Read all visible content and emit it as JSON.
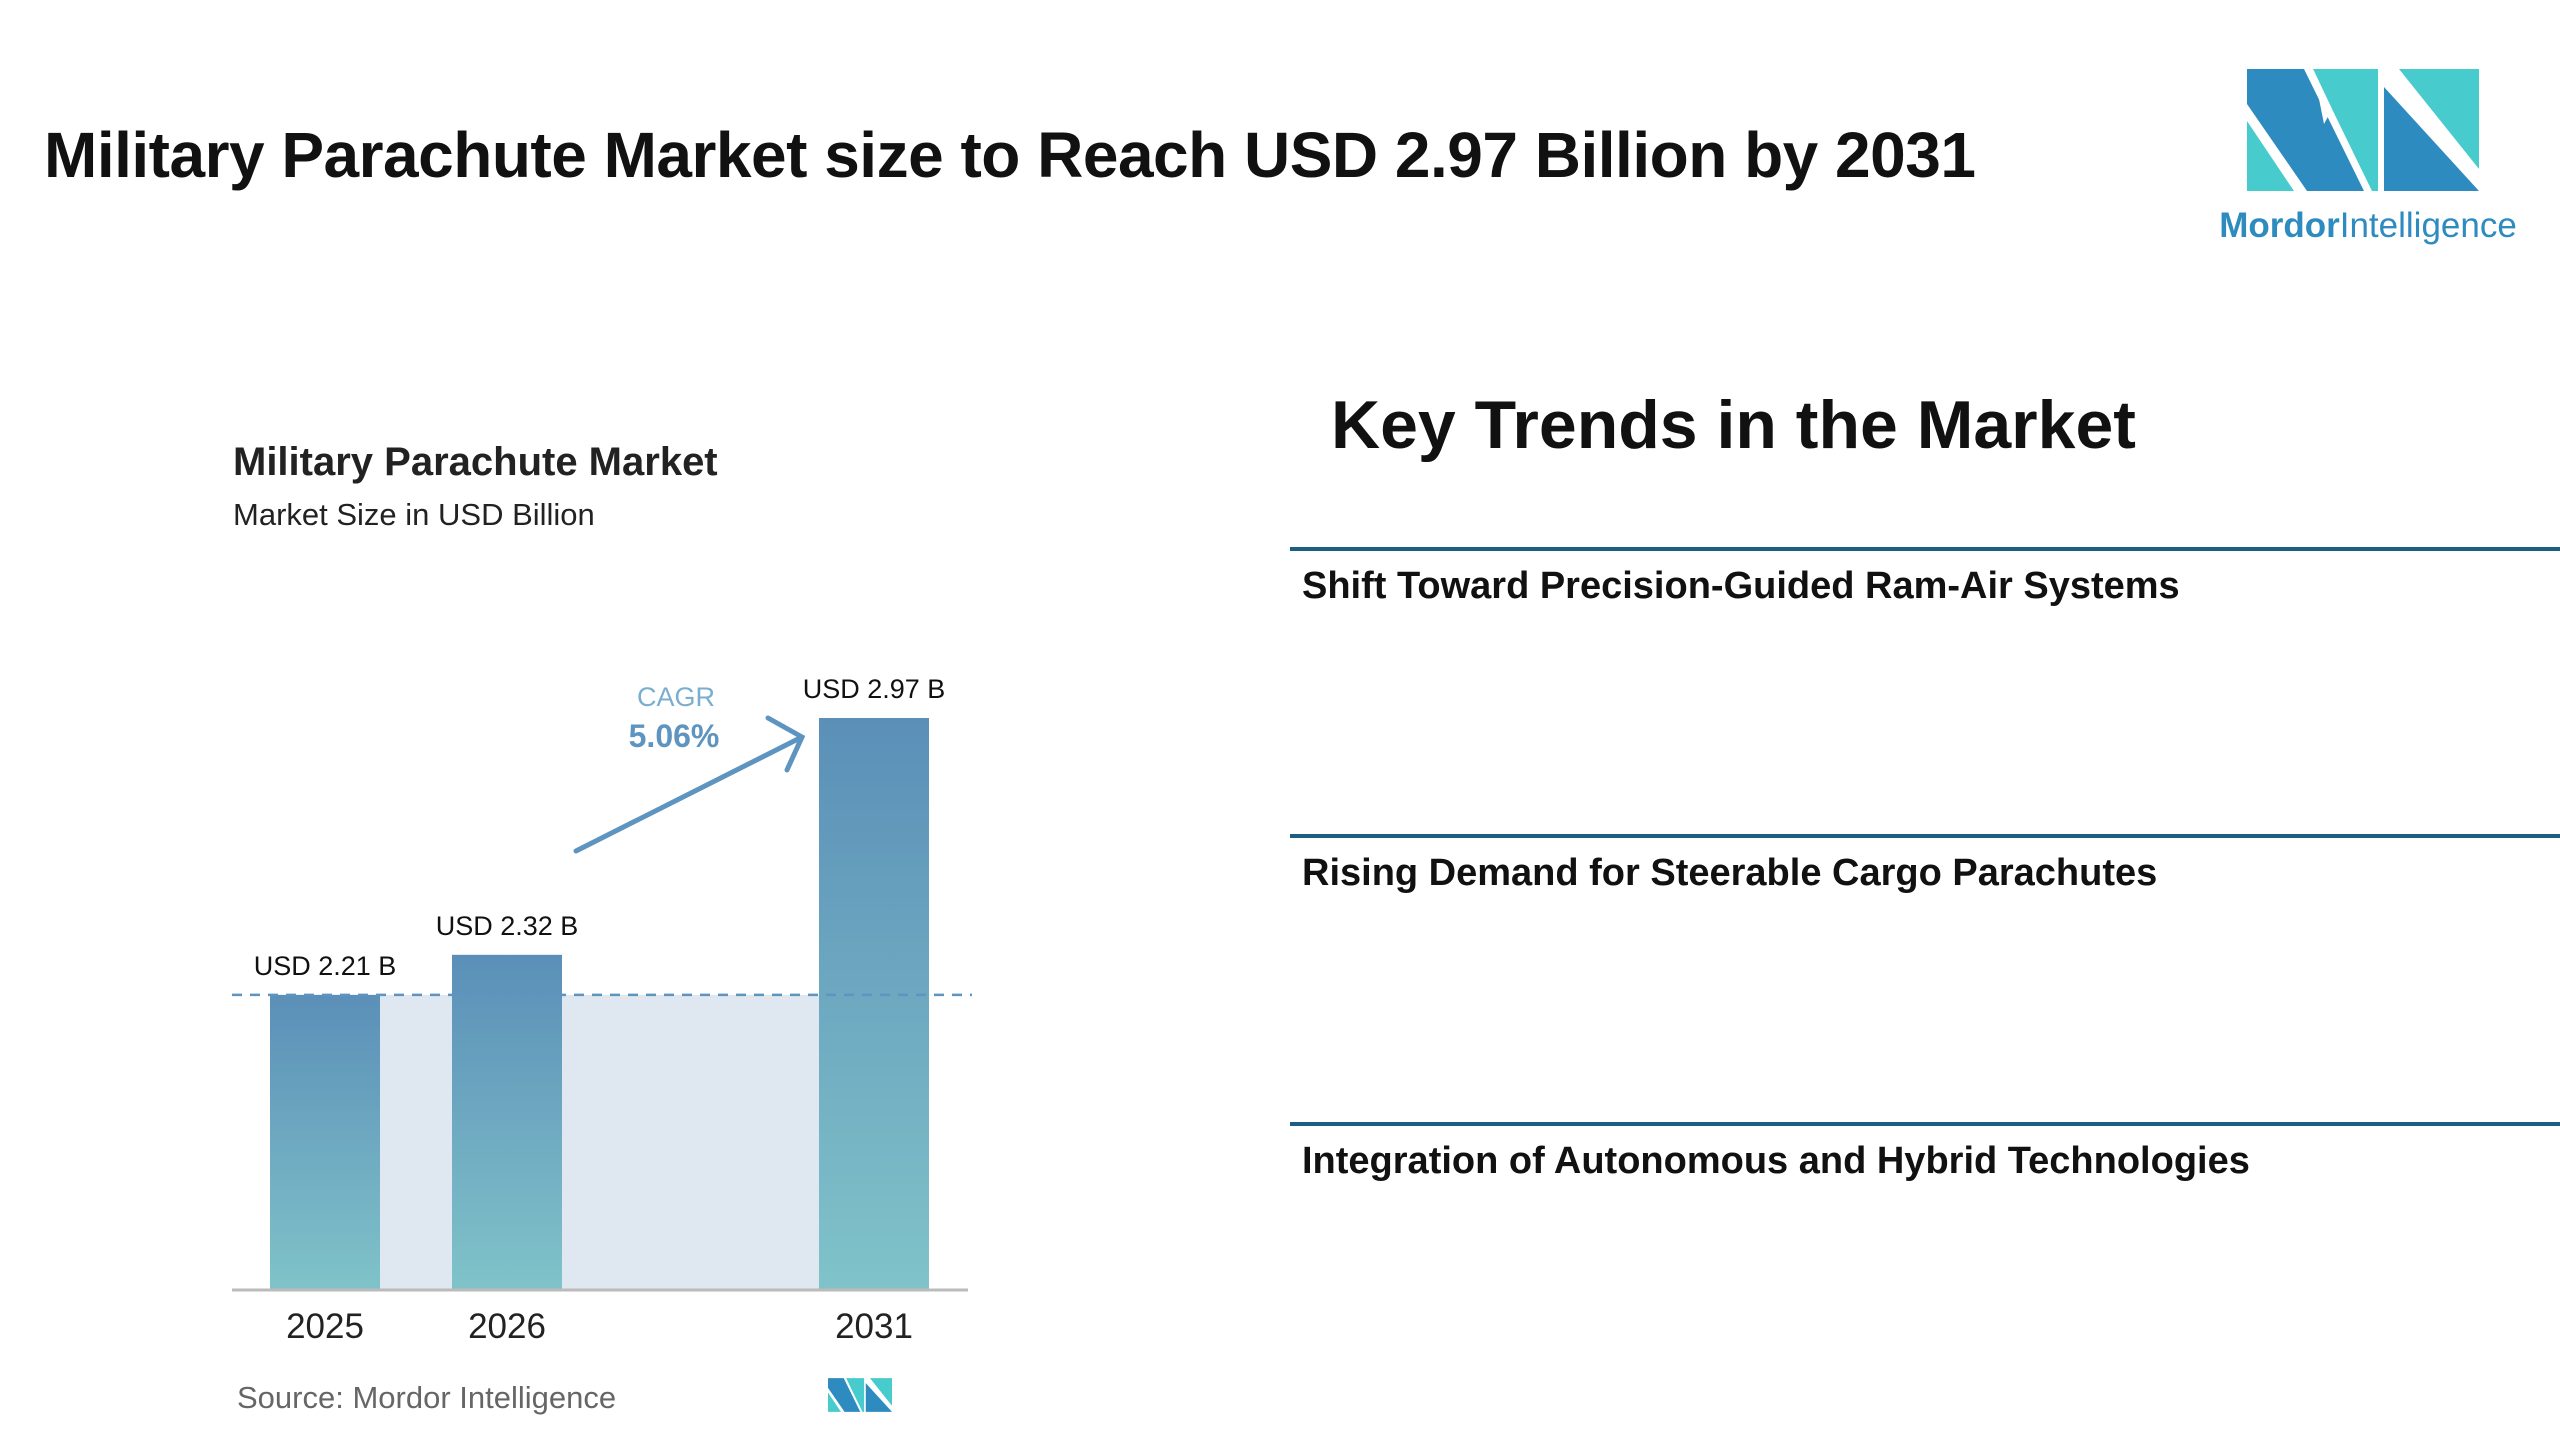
{
  "header": {
    "title": "Military Parachute Market size to Reach USD 2.97 Billion by 2031"
  },
  "logo": {
    "brand_bold": "Mordor",
    "brand_light": "Intelligence",
    "colors": {
      "dark": "#2e8bbf",
      "light": "#48cbcd"
    }
  },
  "chart_data": {
    "type": "bar",
    "title": "Military Parachute Market",
    "subtitle": "Market Size in USD Billion",
    "categories": [
      "2025",
      "2026",
      "2031"
    ],
    "values": [
      2.21,
      2.32,
      2.97
    ],
    "data_labels": [
      "USD 2.21 B",
      "USD 2.32 B",
      "USD 2.97 B"
    ],
    "annotation": {
      "label": "CAGR",
      "value": "5.06%"
    },
    "reference_line": 2.21,
    "grid": false,
    "colors": {
      "bar_top": "#5b8fb8",
      "bar_bottom": "#80c3c9",
      "band": "#dfe8f1",
      "annotation": "#5d94c0"
    }
  },
  "source": "Source:  Mordor Intelligence",
  "trends": {
    "heading": "Key Trends in the Market",
    "items": [
      "Shift Toward Precision-Guided Ram-Air Systems",
      "Rising Demand for Steerable Cargo Parachutes",
      "Integration of Autonomous and Hybrid Technologies"
    ]
  }
}
